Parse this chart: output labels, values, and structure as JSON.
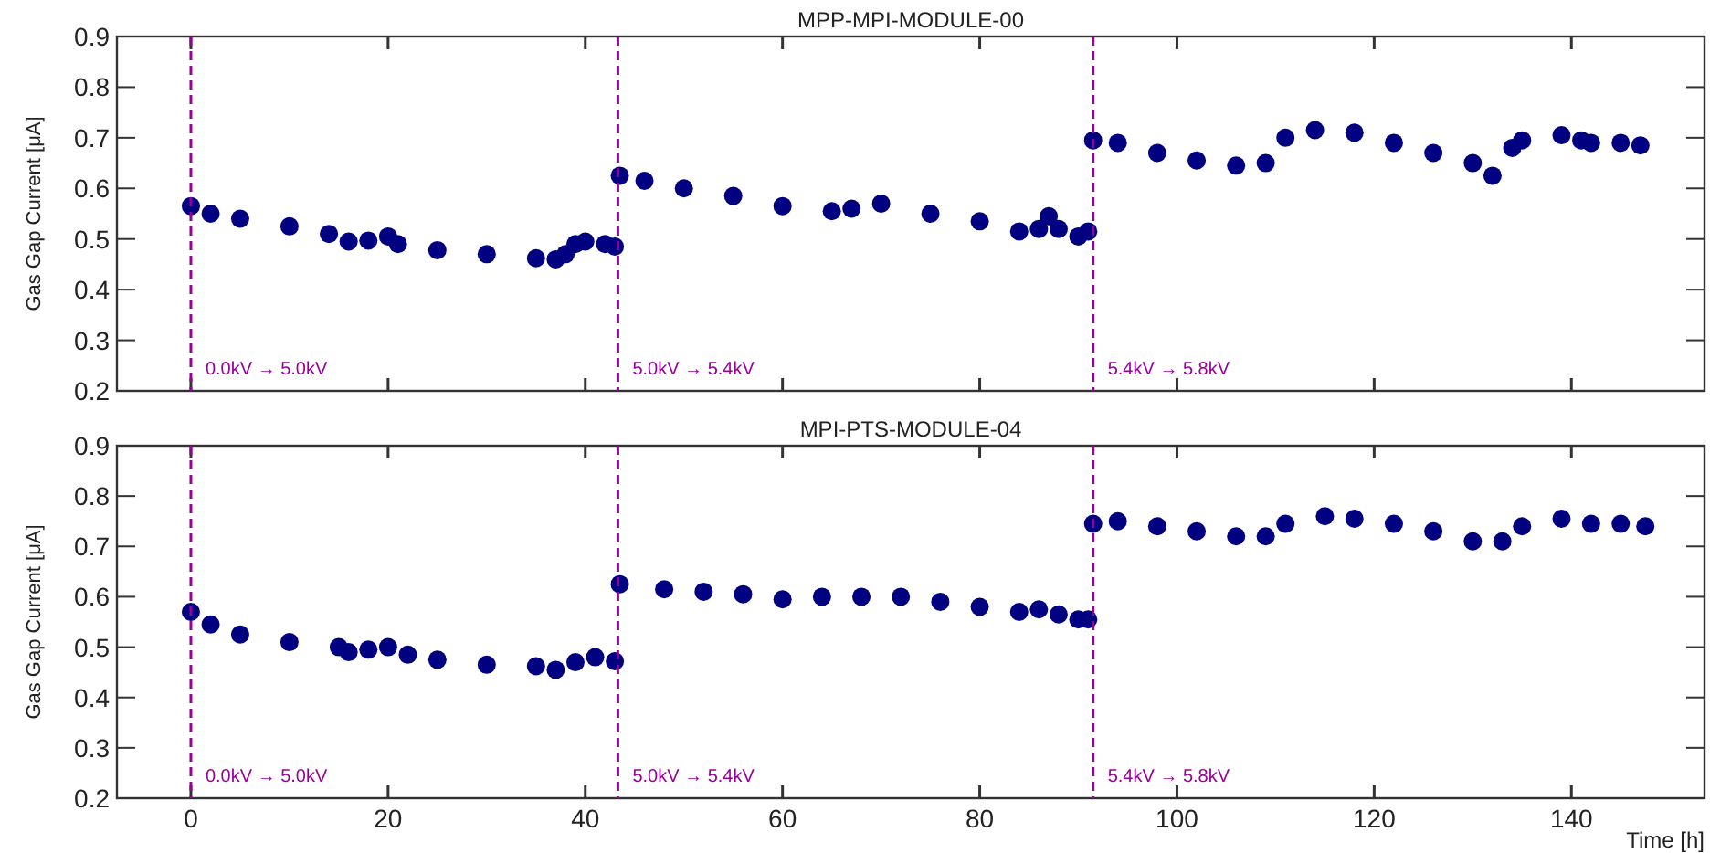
{
  "chart_data": [
    {
      "type": "scatter",
      "title": "MPP-MPI-MODULE-00",
      "ylabel": "Gas Gap Current [μA]",
      "marker": "circle",
      "tick_labels": "y",
      "xlim": [
        -7.5,
        153.5
      ],
      "xticks": [
        0,
        20,
        40,
        60,
        80,
        100,
        120,
        140
      ],
      "ylim": [
        0.2,
        0.9
      ],
      "yticks": [
        0.2,
        0.3,
        0.4,
        0.5,
        0.6,
        0.7,
        0.8,
        0.9
      ],
      "ref_lines": [
        {
          "axis": "x",
          "value": 0,
          "label": "0.0kV → 5.0kV",
          "color": "#990099",
          "line_style": "dashed"
        },
        {
          "axis": "x",
          "value": 43.3,
          "label": "5.0kV → 5.4kV",
          "color": "#990099",
          "line_style": "dashed"
        },
        {
          "axis": "x",
          "value": 91.5,
          "label": "5.4kV → 5.8kV",
          "color": "#990099",
          "line_style": "dashed"
        }
      ],
      "series": [
        {
          "color": "#000080",
          "x": [
            0,
            2,
            5,
            10,
            14,
            16,
            18,
            20,
            21,
            25,
            30,
            35,
            37,
            38,
            39,
            40,
            42,
            43,
            43.5,
            46,
            50,
            55,
            60,
            65,
            67,
            70,
            75,
            80,
            84,
            86,
            87,
            88,
            90,
            91,
            91.5,
            94,
            98,
            102,
            106,
            109,
            111,
            114,
            118,
            122,
            126,
            130,
            132,
            134,
            135,
            139,
            141,
            142,
            145,
            147
          ],
          "values": [
            0.565,
            0.55,
            0.54,
            0.525,
            0.51,
            0.495,
            0.497,
            0.505,
            0.49,
            0.478,
            0.47,
            0.462,
            0.46,
            0.47,
            0.49,
            0.495,
            0.49,
            0.485,
            0.625,
            0.615,
            0.6,
            0.585,
            0.565,
            0.555,
            0.56,
            0.57,
            0.55,
            0.535,
            0.515,
            0.52,
            0.545,
            0.52,
            0.505,
            0.515,
            0.695,
            0.69,
            0.67,
            0.655,
            0.645,
            0.65,
            0.7,
            0.715,
            0.71,
            0.69,
            0.67,
            0.65,
            0.625,
            0.68,
            0.695,
            0.705,
            0.695,
            0.69,
            0.69,
            0.685
          ]
        }
      ]
    },
    {
      "type": "scatter",
      "title": "MPI-PTS-MODULE-04",
      "xlabel": "Time [h]",
      "ylabel": "Gas Gap Current [μA]",
      "marker": "circle",
      "xlim": [
        -7.5,
        153.5
      ],
      "xticks": [
        0,
        20,
        40,
        60,
        80,
        100,
        120,
        140
      ],
      "ylim": [
        0.2,
        0.9
      ],
      "yticks": [
        0.2,
        0.3,
        0.4,
        0.5,
        0.6,
        0.7,
        0.8,
        0.9
      ],
      "ref_lines": [
        {
          "axis": "x",
          "value": 0,
          "label": "0.0kV → 5.0kV",
          "color": "#990099",
          "line_style": "dashed"
        },
        {
          "axis": "x",
          "value": 43.3,
          "label": "5.0kV → 5.4kV",
          "color": "#990099",
          "line_style": "dashed"
        },
        {
          "axis": "x",
          "value": 91.5,
          "label": "5.4kV → 5.8kV",
          "color": "#990099",
          "line_style": "dashed"
        }
      ],
      "series": [
        {
          "color": "#000080",
          "x": [
            0,
            2,
            5,
            10,
            15,
            16,
            18,
            20,
            22,
            25,
            30,
            35,
            37,
            39,
            41,
            43,
            43.5,
            48,
            52,
            56,
            60,
            64,
            68,
            72,
            76,
            80,
            84,
            86,
            88,
            90,
            91,
            91.5,
            94,
            98,
            102,
            106,
            109,
            111,
            115,
            118,
            122,
            126,
            130,
            133,
            135,
            139,
            142,
            145,
            147.5
          ],
          "values": [
            0.57,
            0.545,
            0.525,
            0.51,
            0.5,
            0.49,
            0.495,
            0.5,
            0.485,
            0.475,
            0.465,
            0.462,
            0.455,
            0.47,
            0.48,
            0.472,
            0.625,
            0.615,
            0.61,
            0.605,
            0.595,
            0.6,
            0.6,
            0.6,
            0.59,
            0.58,
            0.57,
            0.575,
            0.565,
            0.555,
            0.555,
            0.745,
            0.75,
            0.74,
            0.73,
            0.72,
            0.72,
            0.745,
            0.76,
            0.755,
            0.745,
            0.73,
            0.71,
            0.71,
            0.74,
            0.755,
            0.745,
            0.745,
            0.74
          ]
        }
      ]
    }
  ]
}
